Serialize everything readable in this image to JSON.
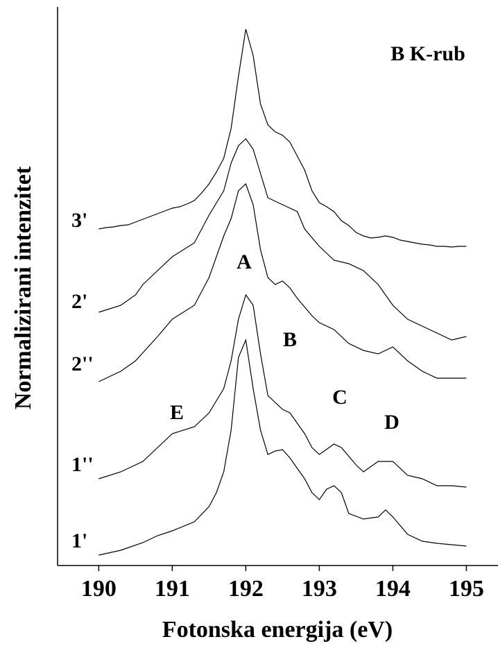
{
  "chart_data": {
    "type": "line",
    "xlabel": "Fotonska energija (eV)",
    "ylabel": "Normalizirani intenzitet",
    "annotations": [
      "B K-rub",
      "A",
      "B",
      "C",
      "D",
      "E"
    ],
    "xlim": [
      189.44,
      195.43
    ],
    "xticks": [
      190,
      191,
      192,
      193,
      194,
      195
    ],
    "ylim": [
      0,
      815
    ],
    "series": [
      {
        "name": "3'",
        "color": "#000000",
        "x": [
          190,
          190.1,
          190.2,
          190.3,
          190.4,
          190.5,
          190.6,
          190.7,
          190.8,
          190.9,
          191,
          191.1,
          191.2,
          191.3,
          191.4,
          191.5,
          191.6,
          191.7,
          191.8,
          191.9,
          192,
          192.1,
          192.2,
          192.3,
          192.4,
          192.5,
          192.6,
          192.7,
          192.8,
          192.9,
          193,
          193.1,
          193.2,
          193.3,
          193.4,
          193.5,
          193.6,
          193.7,
          193.8,
          193.9,
          194,
          194.1,
          194.2,
          194.3,
          194.4,
          194.5,
          194.6,
          194.7,
          194.8,
          194.9,
          195
        ],
        "values": [
          485,
          487,
          488,
          490,
          491,
          495,
          499,
          503,
          507,
          511,
          515,
          517,
          521,
          526,
          537,
          550,
          567,
          587,
          630,
          705,
          773,
          735,
          665,
          635,
          625,
          620,
          610,
          590,
          570,
          540,
          523,
          517,
          510,
          497,
          490,
          480,
          475,
          472,
          473,
          475,
          473,
          469,
          467,
          465,
          463,
          462,
          460,
          460,
          459,
          460,
          460
        ]
      },
      {
        "name": "2'",
        "color": "#000000",
        "x": [
          190,
          190.3,
          190.5,
          190.6,
          190.8,
          191,
          191.3,
          191.5,
          191.7,
          191.8,
          191.9,
          192,
          192.1,
          192.2,
          192.3,
          192.4,
          192.5,
          192.7,
          192.8,
          193,
          193.2,
          193.4,
          193.6,
          193.8,
          194,
          194.2,
          194.4,
          194.6,
          194.8,
          195
        ],
        "values": [
          365,
          375,
          390,
          405,
          425,
          445,
          465,
          505,
          540,
          580,
          605,
          615,
          600,
          565,
          530,
          525,
          520,
          510,
          485,
          460,
          440,
          435,
          425,
          405,
          375,
          355,
          345,
          335,
          325,
          330
        ]
      },
      {
        "name": "2''",
        "color": "#000000",
        "x": [
          190,
          190.3,
          190.5,
          190.8,
          191,
          191.3,
          191.5,
          191.6,
          191.7,
          191.8,
          191.9,
          192,
          192.1,
          192.2,
          192.3,
          192.4,
          192.5,
          192.6,
          192.7,
          192.9,
          193,
          193.2,
          193.4,
          193.6,
          193.8,
          193.9,
          194,
          194.2,
          194.4,
          194.6,
          194.8,
          195
        ],
        "values": [
          265,
          280,
          295,
          330,
          355,
          375,
          415,
          445,
          475,
          500,
          540,
          550,
          520,
          455,
          415,
          405,
          410,
          400,
          385,
          360,
          350,
          340,
          320,
          310,
          305,
          310,
          315,
          295,
          280,
          270,
          270,
          270
        ]
      },
      {
        "name": "1''",
        "color": "#000000",
        "x": [
          190,
          190.3,
          190.6,
          190.8,
          191,
          191.3,
          191.5,
          191.7,
          191.8,
          191.9,
          192,
          192.1,
          192.2,
          192.3,
          192.5,
          192.6,
          192.8,
          192.9,
          193,
          193.2,
          193.3,
          193.5,
          193.6,
          193.8,
          194,
          194.2,
          194.4,
          194.6,
          194.8,
          195
        ],
        "values": [
          125,
          135,
          150,
          170,
          190,
          200,
          220,
          255,
          295,
          355,
          390,
          375,
          305,
          245,
          225,
          220,
          190,
          170,
          160,
          175,
          170,
          145,
          135,
          150,
          150,
          130,
          125,
          115,
          115,
          113
        ]
      },
      {
        "name": "1'",
        "color": "#000000",
        "x": [
          190,
          190.3,
          190.6,
          190.8,
          191,
          191.3,
          191.5,
          191.6,
          191.7,
          191.8,
          191.9,
          192,
          192.1,
          192.2,
          192.3,
          192.4,
          192.5,
          192.6,
          192.8,
          192.9,
          193,
          193.1,
          193.2,
          193.3,
          193.4,
          193.6,
          193.8,
          193.9,
          194,
          194.2,
          194.4,
          194.6,
          194.8,
          195
        ],
        "values": [
          15,
          22,
          33,
          43,
          50,
          63,
          85,
          105,
          135,
          195,
          300,
          325,
          255,
          195,
          160,
          165,
          167,
          155,
          125,
          105,
          95,
          110,
          115,
          105,
          75,
          67,
          70,
          80,
          70,
          45,
          35,
          32,
          30,
          28
        ]
      }
    ]
  }
}
